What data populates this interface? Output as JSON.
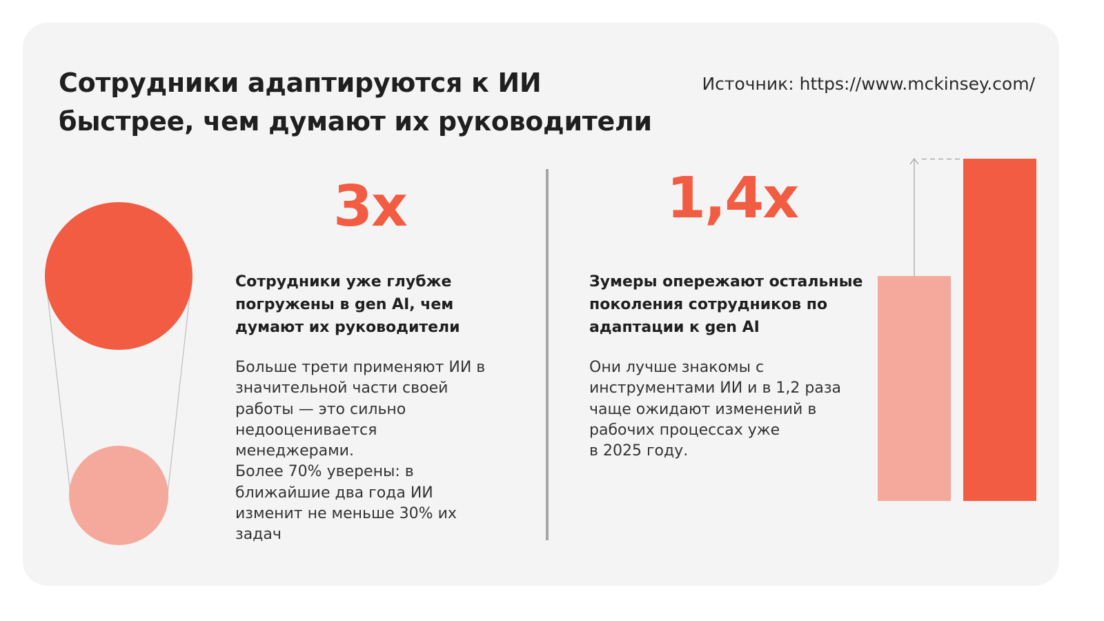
{
  "title": {
    "line1": "Сотрудники адаптируются к ИИ",
    "line2": "быстрее, чем думают их руководители"
  },
  "source": "Источник: https://www.mckinsey.com/",
  "left_stat": {
    "value": "3x",
    "heading_lines": [
      "Сотрудники уже глубже",
      "погружены в gen AI, чем",
      "думают их руководители"
    ],
    "body_lines": [
      "Больше трети применяют ИИ в",
      "значительной части своей",
      "работы — это сильно",
      "недооценивается",
      "менеджерами.",
      "Более 70% уверены: в",
      "ближайшие два года ИИ",
      "изменит не меньше 30% их",
      "задач"
    ]
  },
  "right_stat": {
    "value": "1,4x",
    "heading_lines": [
      "Зумеры опережают остальные",
      "поколения сотрудников по",
      "адаптации к gen AI"
    ],
    "body_lines": [
      "Они лучше знакомы с",
      "инструментами ИИ и в 1,2 раза",
      "чаще ожидают изменений в",
      "рабочих процессах уже",
      "в 2025 году."
    ]
  },
  "colors": {
    "accent": "#f25c42",
    "accent_light": "#f4a99c",
    "card_bg": "#f4f4f4",
    "text": "#1f1f1f"
  },
  "visuals": {
    "circles_ratio": 3,
    "bars_ratio": 1.4
  }
}
